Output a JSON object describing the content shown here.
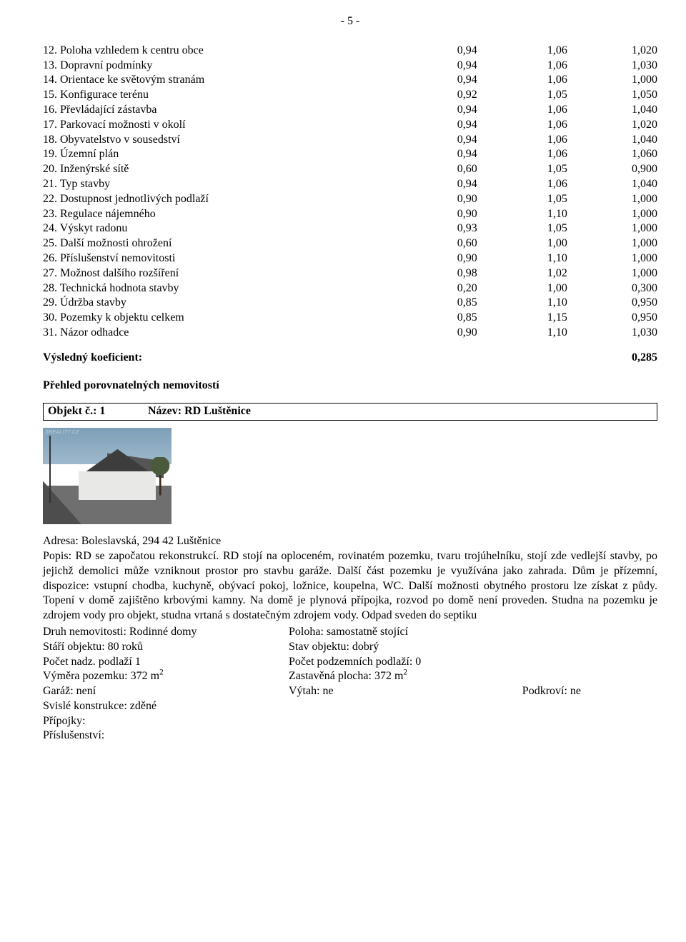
{
  "page_number": "- 5 -",
  "coef_rows": [
    {
      "label": "12. Poloha vzhledem k centru obce",
      "v1": "0,94",
      "v2": "1,06",
      "v3": "1,020"
    },
    {
      "label": "13. Dopravní podmínky",
      "v1": "0,94",
      "v2": "1,06",
      "v3": "1,030"
    },
    {
      "label": "14. Orientace ke světovým stranám",
      "v1": "0,94",
      "v2": "1,06",
      "v3": "1,000"
    },
    {
      "label": "15. Konfigurace terénu",
      "v1": "0,92",
      "v2": "1,05",
      "v3": "1,050"
    },
    {
      "label": "16. Převládající zástavba",
      "v1": "0,94",
      "v2": "1,06",
      "v3": "1,040"
    },
    {
      "label": "17. Parkovací možnosti v okolí",
      "v1": "0,94",
      "v2": "1,06",
      "v3": "1,020"
    },
    {
      "label": "18. Obyvatelstvo v sousedství",
      "v1": "0,94",
      "v2": "1,06",
      "v3": "1,040"
    },
    {
      "label": "19. Územní plán",
      "v1": "0,94",
      "v2": "1,06",
      "v3": "1,060"
    },
    {
      "label": "20. Inženýrské sítě",
      "v1": "0,60",
      "v2": "1,05",
      "v3": "0,900"
    },
    {
      "label": "21. Typ stavby",
      "v1": "0,94",
      "v2": "1,06",
      "v3": "1,040"
    },
    {
      "label": "22. Dostupnost jednotlivých podlaží",
      "v1": "0,90",
      "v2": "1,05",
      "v3": "1,000"
    },
    {
      "label": "23. Regulace nájemného",
      "v1": "0,90",
      "v2": "1,10",
      "v3": "1,000"
    },
    {
      "label": "24. Výskyt radonu",
      "v1": "0,93",
      "v2": "1,05",
      "v3": "1,000"
    },
    {
      "label": "25. Další možnosti ohrožení",
      "v1": "0,60",
      "v2": "1,00",
      "v3": "1,000"
    },
    {
      "label": "26. Příslušenství nemovitosti",
      "v1": "0,90",
      "v2": "1,10",
      "v3": "1,000"
    },
    {
      "label": "27. Možnost dalšího rozšíření",
      "v1": "0,98",
      "v2": "1,02",
      "v3": "1,000"
    },
    {
      "label": "28. Technická hodnota stavby",
      "v1": "0,20",
      "v2": "1,00",
      "v3": "0,300"
    },
    {
      "label": "29. Údržba stavby",
      "v1": "0,85",
      "v2": "1,10",
      "v3": "0,950"
    },
    {
      "label": "30. Pozemky k objektu celkem",
      "v1": "0,85",
      "v2": "1,15",
      "v3": "0,950"
    },
    {
      "label": "31. Názor odhadce",
      "v1": "0,90",
      "v2": "1,10",
      "v3": "1,030"
    }
  ],
  "result": {
    "label": "Výsledný koeficient:",
    "value": "0,285"
  },
  "overview_heading": "Přehled porovnatelných nemovitostí",
  "object": {
    "num_label": "Objekt č.: 1",
    "name_label": "Název: RD Luštěnice"
  },
  "photo_watermark": "SREALITY.CZ",
  "address": "Adresa: Boleslavská, 294 42 Luštěnice",
  "popis": "Popis: RD se započatou rekonstrukcí. RD stojí na oploceném, rovinatém pozemku, tvaru trojúhelníku, stojí zde vedlejší stavby, po jejichž demolici může vzniknout prostor pro stavbu garáže. Další část pozemku je využívána jako zahrada. Dům je přízemní, dispozice: vstupní chodba, kuchyně, obývací pokoj, ložnice, koupelna, WC. Další možnosti obytného prostoru lze získat z půdy. Topení v domě zajištěno krbovými kamny. Na domě je plynová přípojka, rozvod po domě není proveden. Studna na pozemku je zdrojem vody pro objekt, studna vrtaná s dostatečným zdrojem vody. Odpad sveden do septiku",
  "props": {
    "druh_label": "Druh nemovitosti: Rodinné domy",
    "poloha_label": "Poloha: samostatně stojící",
    "stari_label": "Stáří objektu: 80 roků",
    "stav_label": "Stav objektu: dobrý",
    "nadz_label": "Počet nadz. podlaží 1",
    "podz_label": "Počet podzemních podlaží: 0",
    "vymera_prefix": "Výměra pozemku: 372 m",
    "zast_prefix": "Zastavěná plocha: 372 m",
    "sup": "2",
    "garaz_label": "Garáž: není",
    "vytah_label": "Výtah: ne",
    "podkrovi_label": "Podkroví: ne",
    "svisle_label": "Svislé konstrukce: zděné",
    "pripojky_label": "Přípojky:",
    "prisl_label": "Příslušenství:"
  }
}
